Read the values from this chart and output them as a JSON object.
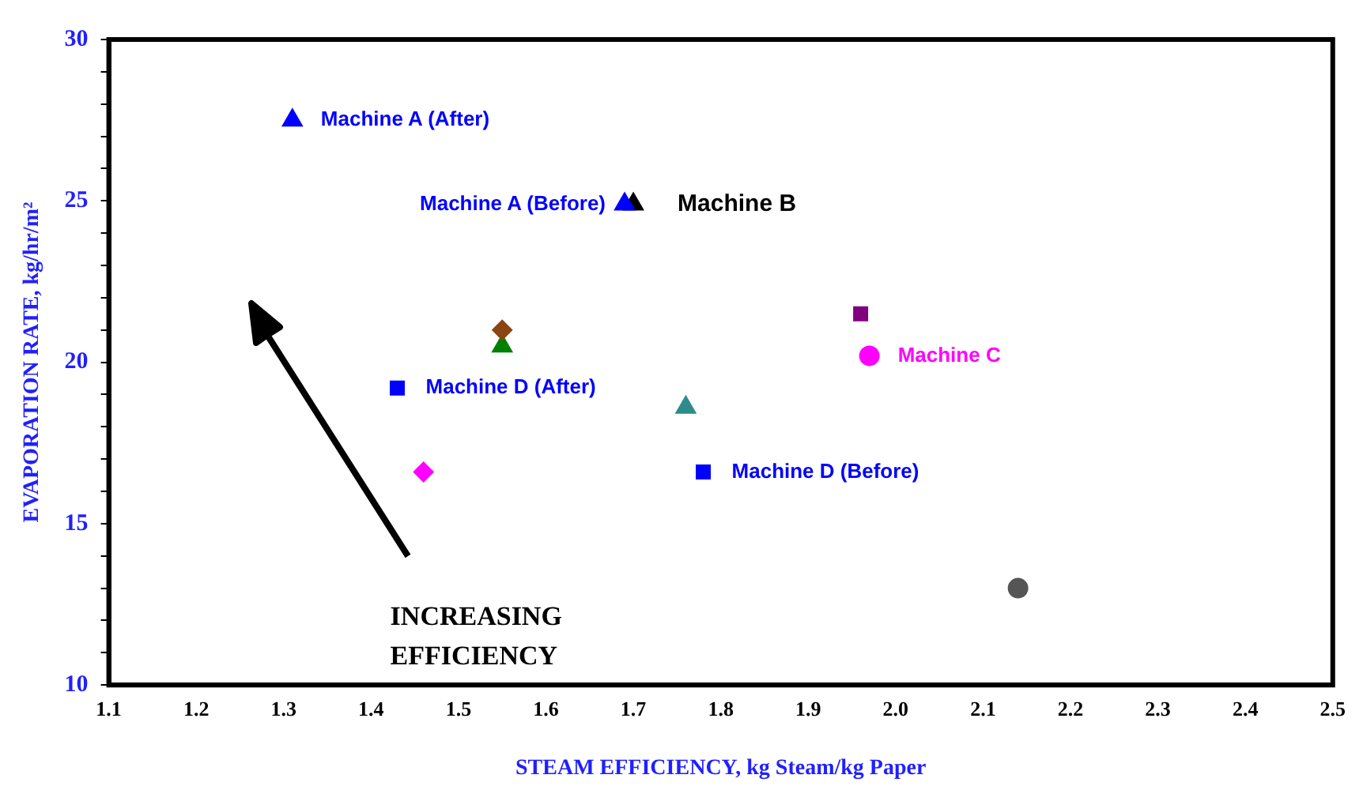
{
  "chart_data": {
    "type": "scatter",
    "xlabel": "STEAM EFFICIENCY, kg Steam/kg Paper",
    "ylabel": "EVAPORATION RATE, kg/hr/m²",
    "xlim": [
      1.1,
      2.5
    ],
    "xticks": [
      1.1,
      1.2,
      1.3,
      1.4,
      1.5,
      1.6,
      1.7,
      1.8,
      1.9,
      {
        "value": 2,
        "label": "2.0"
      },
      2.1,
      2.2,
      2.3,
      2.4,
      2.5
    ],
    "ylim": [
      10,
      30
    ],
    "yticks": [
      10,
      {
        "value": 11,
        "label": null
      },
      {
        "value": 12,
        "label": null
      },
      {
        "value": 13,
        "label": null
      },
      {
        "value": 14,
        "label": null
      },
      15,
      {
        "value": 16,
        "label": null
      },
      {
        "value": 17,
        "label": null
      },
      {
        "value": 18,
        "label": null
      },
      {
        "value": 19,
        "label": null
      },
      20,
      {
        "value": 21,
        "label": null
      },
      {
        "value": 22,
        "label": null
      },
      {
        "value": 23,
        "label": null
      },
      {
        "value": 24,
        "label": null
      },
      25,
      {
        "value": 26,
        "label": null
      },
      {
        "value": 27,
        "label": null
      },
      {
        "value": 28,
        "label": null
      },
      {
        "value": 29,
        "label": null
      },
      30
    ],
    "grid": false,
    "legend": false,
    "series": [
      {
        "name": "Machine A (After)",
        "color": "#0000ff",
        "marker": "triangle",
        "x": [
          1.31
        ],
        "values": [
          27.5
        ]
      },
      {
        "name": "Machine A (Before)",
        "color": "#0000ff",
        "marker": "triangle",
        "x": [
          1.69
        ],
        "values": [
          24.9
        ]
      },
      {
        "name": "Machine B",
        "color": "#000000",
        "marker": "triangle",
        "x": [
          1.7
        ],
        "values": [
          24.9
        ]
      },
      {
        "color": "#8b4513",
        "marker": "diamond",
        "x": [
          1.55
        ],
        "values": [
          21.0
        ]
      },
      {
        "color": "#008000",
        "marker": "triangle",
        "x": [
          1.55
        ],
        "values": [
          20.5
        ]
      },
      {
        "name": "Machine D (After)",
        "color": "#0000ff",
        "marker": "square",
        "x": [
          1.43
        ],
        "values": [
          19.2
        ]
      },
      {
        "color": "#ff00ff",
        "marker": "diamond",
        "x": [
          1.46
        ],
        "values": [
          16.6
        ]
      },
      {
        "color": "#2e8b8b",
        "marker": "triangle",
        "x": [
          1.76
        ],
        "values": [
          18.6
        ]
      },
      {
        "name": "Machine D (Before)",
        "color": "#0000ff",
        "marker": "square",
        "x": [
          1.78
        ],
        "values": [
          16.6
        ]
      },
      {
        "color": "#800080",
        "marker": "square",
        "x": [
          1.96
        ],
        "values": [
          21.5
        ]
      },
      {
        "name": "Machine C",
        "color": "#ff00ff",
        "marker": "circle",
        "x": [
          1.97
        ],
        "values": [
          20.2
        ]
      },
      {
        "color": "#555555",
        "marker": "circle",
        "x": [
          2.14
        ],
        "values": [
          13.0
        ]
      }
    ],
    "annotations": [
      "INCREASING\nEFFICIENCY"
    ]
  }
}
